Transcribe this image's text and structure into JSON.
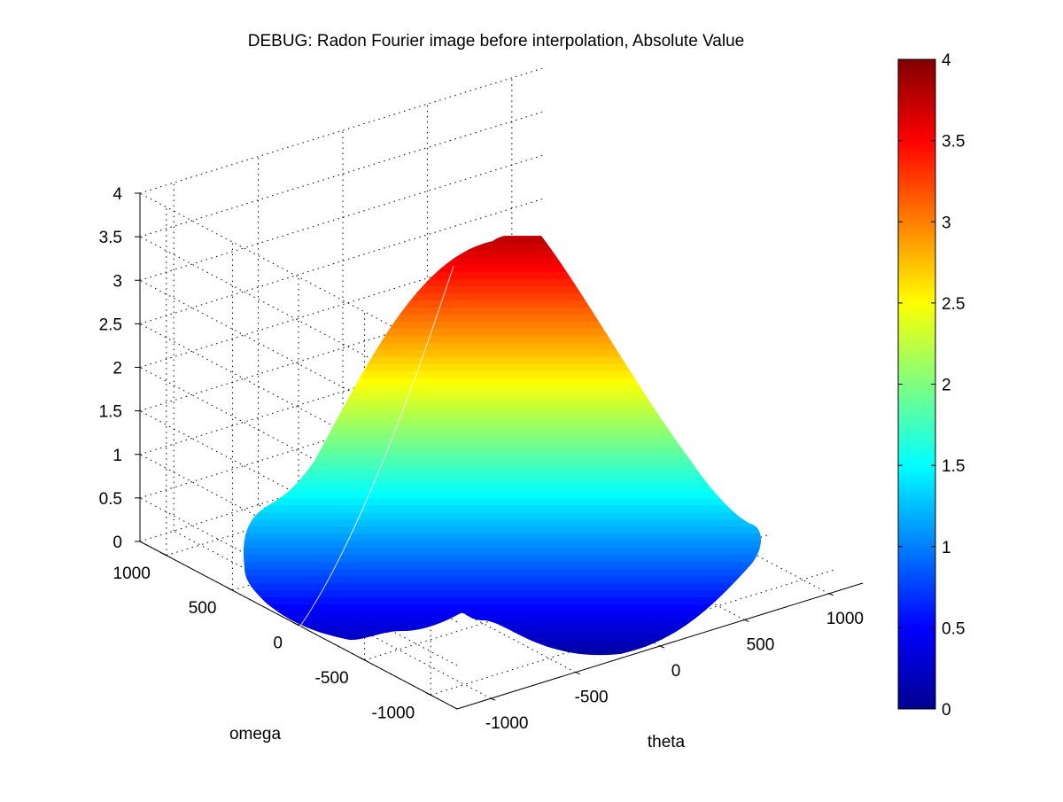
{
  "chart_data": {
    "type": "surface",
    "title": "DEBUG: Radon Fourier image before interpolation, Absolute Value",
    "xlabel": "theta",
    "ylabel": "omega",
    "zlabel": "",
    "x_ticks": [
      "-1000",
      "-500",
      "0",
      "500",
      "1000"
    ],
    "y_ticks": [
      "-1000",
      "-500",
      "0",
      "500",
      "1000"
    ],
    "z_ticks": [
      "0",
      "0.5",
      "1",
      "1.5",
      "2",
      "2.5",
      "3",
      "3.5",
      "4"
    ],
    "xlim": [
      -1200,
      1200
    ],
    "ylim": [
      -1200,
      1200
    ],
    "zlim": [
      0,
      4
    ],
    "grid": true,
    "peak_value": 3.75,
    "peak_at": {
      "theta": 0,
      "omega": 0
    },
    "colormap": "jet",
    "colorbar": {
      "limits": [
        0,
        4
      ],
      "ticks": [
        "0",
        "0.5",
        "1",
        "1.5",
        "2",
        "2.5",
        "3",
        "3.5",
        "4"
      ],
      "colors": [
        "#00008f",
        "#0000ff",
        "#00ffff",
        "#ffff00",
        "#ff0000",
        "#800000"
      ]
    }
  }
}
